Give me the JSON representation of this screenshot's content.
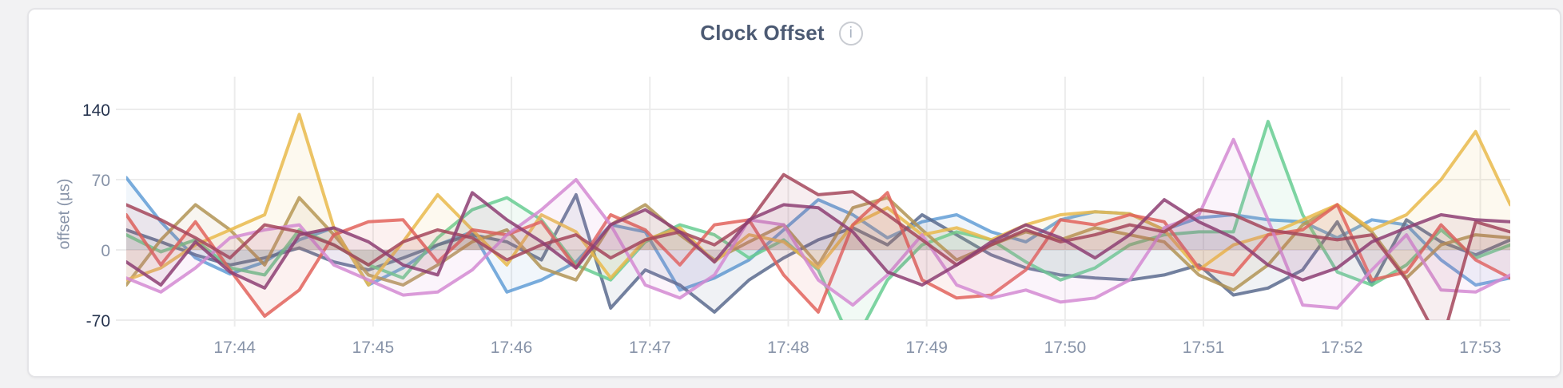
{
  "header": {
    "title": "Clock Offset",
    "info_glyph": "i"
  },
  "chart_data": {
    "type": "line",
    "title": "Clock Offset",
    "xlabel": "",
    "ylabel": "offset (µs)",
    "ylim": [
      -70,
      168
    ],
    "clip_min": -70,
    "grid": true,
    "legend_position": "none",
    "x_domain_seconds": [
      0,
      600
    ],
    "sample_interval_seconds": 15,
    "xticks": [
      {
        "label": "17:44",
        "t": 47
      },
      {
        "label": "17:45",
        "t": 107
      },
      {
        "label": "17:46",
        "t": 167
      },
      {
        "label": "17:47",
        "t": 227
      },
      {
        "label": "17:48",
        "t": 287
      },
      {
        "label": "17:49",
        "t": 347
      },
      {
        "label": "17:50",
        "t": 407
      },
      {
        "label": "17:51",
        "t": 467
      },
      {
        "label": "17:52",
        "t": 527
      },
      {
        "label": "17:53",
        "t": 587
      }
    ],
    "yticks": [
      {
        "label": "140",
        "value": 140,
        "emphasis": true
      },
      {
        "label": "70",
        "value": 70,
        "emphasis": false
      },
      {
        "label": "0",
        "value": 0,
        "emphasis": false
      },
      {
        "label": "-70",
        "value": -70,
        "emphasis": true
      }
    ],
    "style": {
      "grid_color": "#ececec",
      "tick_color": "#8793a8",
      "tick_color_emphasis": "#25334e",
      "line_width": 4,
      "line_opacity": 0.85,
      "fill_opacity": 0.09,
      "fill_baseline": 0
    },
    "series": [
      {
        "name": "blue",
        "color": "#619ED6",
        "values": [
          72,
          28,
          -8,
          -24,
          -12,
          10,
          22,
          -35,
          -18,
          5,
          18,
          -42,
          -30,
          -12,
          25,
          18,
          -40,
          -28,
          -10,
          20,
          50,
          35,
          12,
          28,
          35,
          18,
          8,
          30,
          38,
          36,
          20,
          32,
          35,
          30,
          28,
          12,
          30,
          25,
          -10,
          -35,
          -28
        ]
      },
      {
        "name": "slate",
        "color": "#5A6B8E",
        "values": [
          20,
          8,
          -5,
          -15,
          -8,
          2,
          -12,
          -20,
          -8,
          5,
          15,
          8,
          -10,
          55,
          -58,
          -20,
          -35,
          -62,
          -30,
          -8,
          10,
          22,
          5,
          35,
          15,
          -5,
          -18,
          -25,
          -28,
          -30,
          -25,
          -15,
          -45,
          -38,
          -20,
          28,
          -35,
          30,
          8,
          -5,
          10
        ]
      },
      {
        "name": "green",
        "color": "#67CD92",
        "values": [
          15,
          -2,
          10,
          -18,
          -25,
          20,
          5,
          -15,
          -28,
          12,
          40,
          52,
          30,
          -15,
          -30,
          8,
          25,
          15,
          -8,
          10,
          -20,
          -95,
          -30,
          5,
          18,
          10,
          -12,
          -30,
          -18,
          5,
          15,
          18,
          18,
          128,
          35,
          -22,
          -35,
          -15,
          20,
          -8,
          5
        ]
      },
      {
        "name": "olive",
        "color": "#B29455",
        "values": [
          -35,
          10,
          45,
          20,
          -15,
          52,
          15,
          -25,
          -35,
          -15,
          8,
          20,
          -18,
          -30,
          25,
          45,
          15,
          -10,
          8,
          25,
          -15,
          42,
          52,
          20,
          -10,
          5,
          18,
          10,
          22,
          15,
          8,
          -25,
          -40,
          -15,
          25,
          45,
          18,
          -28,
          5,
          15,
          12
        ]
      },
      {
        "name": "gold",
        "color": "#E9BA4B",
        "values": [
          -30,
          -18,
          5,
          20,
          35,
          135,
          22,
          -35,
          8,
          55,
          20,
          -15,
          35,
          18,
          -28,
          10,
          22,
          -12,
          15,
          8,
          -18,
          25,
          42,
          15,
          22,
          10,
          25,
          35,
          38,
          36,
          20,
          -20,
          5,
          15,
          30,
          45,
          20,
          35,
          70,
          118,
          45
        ]
      },
      {
        "name": "salmon",
        "color": "#E2635C",
        "values": [
          35,
          -15,
          28,
          -20,
          -66,
          -40,
          15,
          28,
          30,
          -12,
          20,
          15,
          28,
          -18,
          35,
          20,
          -15,
          25,
          30,
          -25,
          -62,
          25,
          57,
          -30,
          -48,
          -45,
          -20,
          30,
          25,
          35,
          28,
          -18,
          -25,
          15,
          20,
          45,
          -30,
          -22,
          25,
          -10,
          -28
        ]
      },
      {
        "name": "orchid",
        "color": "#D48AD2",
        "values": [
          -28,
          -42,
          -18,
          12,
          20,
          25,
          -15,
          -30,
          -45,
          -42,
          -20,
          15,
          40,
          70,
          25,
          -35,
          -48,
          -25,
          30,
          25,
          -30,
          -55,
          -25,
          15,
          -35,
          -48,
          -40,
          -52,
          -48,
          -30,
          22,
          35,
          110,
          30,
          -55,
          -58,
          -20,
          15,
          -40,
          -42,
          -25
        ]
      },
      {
        "name": "maroon",
        "color": "#A4475C",
        "values": [
          45,
          30,
          12,
          -8,
          25,
          18,
          5,
          -15,
          8,
          20,
          12,
          -10,
          5,
          15,
          -8,
          10,
          18,
          5,
          28,
          75,
          55,
          58,
          35,
          10,
          -15,
          5,
          20,
          8,
          15,
          25,
          18,
          40,
          35,
          20,
          15,
          10,
          15,
          -30,
          -95,
          28,
          18
        ]
      },
      {
        "name": "plum",
        "color": "#8D3E73",
        "values": [
          -12,
          -35,
          8,
          -22,
          -38,
          15,
          22,
          8,
          -15,
          -25,
          57,
          30,
          8,
          -18,
          25,
          40,
          18,
          -12,
          30,
          45,
          42,
          18,
          -22,
          -35,
          -15,
          8,
          25,
          12,
          -8,
          15,
          50,
          28,
          12,
          -15,
          -30,
          -18,
          8,
          22,
          35,
          30,
          28
        ]
      }
    ]
  }
}
